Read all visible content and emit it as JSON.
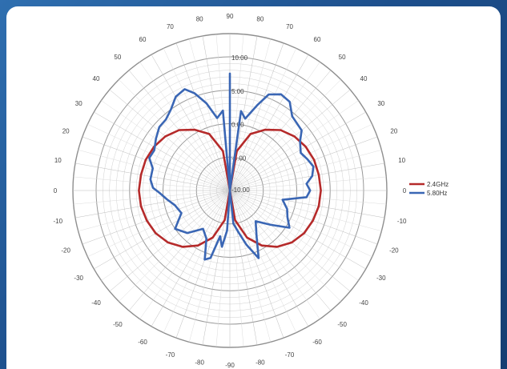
{
  "chart_data": {
    "type": "polar-line",
    "angle_labels": [
      "90",
      "80",
      "70",
      "60",
      "50",
      "40",
      "30",
      "20",
      "10",
      "0",
      "-10",
      "-20",
      "-30",
      "-40",
      "-50",
      "-60",
      "-70",
      "-80",
      "-90",
      "-80",
      "-70",
      "-60",
      "-50",
      "-40",
      "-30",
      "-20",
      "-10",
      "0",
      "10",
      "20",
      "30",
      "40",
      "50",
      "60",
      "70",
      "80"
    ],
    "ring_labels": [
      "10.00",
      "5.00",
      "0.00",
      "-5.00",
      "-10.00"
    ],
    "r_range": [
      -10,
      10
    ],
    "series": [
      {
        "name": "2.4GHz",
        "color": "#b52a2a",
        "points": [
          {
            "angle": 0,
            "value": -10
          },
          {
            "angle": 10,
            "value": -4
          },
          {
            "angle": 20,
            "value": -1
          },
          {
            "angle": 30,
            "value": 0.5
          },
          {
            "angle": 40,
            "value": 1.8
          },
          {
            "angle": 50,
            "value": 2.6
          },
          {
            "angle": 60,
            "value": 3.1
          },
          {
            "angle": 70,
            "value": 3.4
          },
          {
            "angle": 80,
            "value": 3.5
          },
          {
            "angle": 90,
            "value": 3.6
          },
          {
            "angle": 100,
            "value": 3.5
          },
          {
            "angle": 110,
            "value": 3.2
          },
          {
            "angle": 120,
            "value": 2.8
          },
          {
            "angle": 130,
            "value": 2.1
          },
          {
            "angle": 140,
            "value": 1.0
          },
          {
            "angle": 150,
            "value": -0.5
          },
          {
            "angle": 160,
            "value": -2.5
          },
          {
            "angle": 170,
            "value": -5.5
          },
          {
            "angle": 180,
            "value": -10
          },
          {
            "angle": 190,
            "value": -5.5
          },
          {
            "angle": 200,
            "value": -2.5
          },
          {
            "angle": 210,
            "value": -0.5
          },
          {
            "angle": 220,
            "value": 1.0
          },
          {
            "angle": 230,
            "value": 2.1
          },
          {
            "angle": 240,
            "value": 2.8
          },
          {
            "angle": 250,
            "value": 3.2
          },
          {
            "angle": 260,
            "value": 3.5
          },
          {
            "angle": 270,
            "value": 3.6
          },
          {
            "angle": 280,
            "value": 3.5
          },
          {
            "angle": 290,
            "value": 3.4
          },
          {
            "angle": 300,
            "value": 3.1
          },
          {
            "angle": 310,
            "value": 2.6
          },
          {
            "angle": 320,
            "value": 1.8
          },
          {
            "angle": 330,
            "value": 0.5
          },
          {
            "angle": 340,
            "value": -1
          },
          {
            "angle": 350,
            "value": -4
          },
          {
            "angle": 360,
            "value": -10
          }
        ]
      },
      {
        "name": "5.80Hz",
        "color": "#3a66b4",
        "points": [
          {
            "angle": 0,
            "value": 7.5
          },
          {
            "angle": 2,
            "value": -10
          },
          {
            "angle": 8,
            "value": 2.0
          },
          {
            "angle": 12,
            "value": 1.0
          },
          {
            "angle": 18,
            "value": 3.5
          },
          {
            "angle": 22,
            "value": 5.5
          },
          {
            "angle": 28,
            "value": 6.3
          },
          {
            "angle": 34,
            "value": 6.0
          },
          {
            "angle": 40,
            "value": 4.5
          },
          {
            "angle": 45,
            "value": 4.2
          },
          {
            "angle": 50,
            "value": 4.0
          },
          {
            "angle": 55,
            "value": 2.8
          },
          {
            "angle": 62,
            "value": 2.0
          },
          {
            "angle": 68,
            "value": 2.5
          },
          {
            "angle": 74,
            "value": 3.0
          },
          {
            "angle": 80,
            "value": 2.5
          },
          {
            "angle": 85,
            "value": 1.5
          },
          {
            "angle": 90,
            "value": 2.0
          },
          {
            "angle": 95,
            "value": 1.5
          },
          {
            "angle": 100,
            "value": -2.0
          },
          {
            "angle": 108,
            "value": -1.0
          },
          {
            "angle": 115,
            "value": -0.5
          },
          {
            "angle": 122,
            "value": 0.5
          },
          {
            "angle": 130,
            "value": -2.0
          },
          {
            "angle": 140,
            "value": -4.0
          },
          {
            "angle": 150,
            "value": -2.0
          },
          {
            "angle": 157,
            "value": 1.0
          },
          {
            "angle": 163,
            "value": -1.5
          },
          {
            "angle": 168,
            "value": -3.5
          },
          {
            "angle": 174,
            "value": -5.0
          },
          {
            "angle": 180,
            "value": -10
          },
          {
            "angle": 184,
            "value": -4.0
          },
          {
            "angle": 188,
            "value": -1.5
          },
          {
            "angle": 192,
            "value": -3.0
          },
          {
            "angle": 196,
            "value": 0.5
          },
          {
            "angle": 200,
            "value": 1.0
          },
          {
            "angle": 206,
            "value": -2.0
          },
          {
            "angle": 215,
            "value": -3.0
          },
          {
            "angle": 225,
            "value": -1.0
          },
          {
            "angle": 235,
            "value": 0.0
          },
          {
            "angle": 245,
            "value": -2.0
          },
          {
            "angle": 255,
            "value": -1.5
          },
          {
            "angle": 262,
            "value": -0.5
          },
          {
            "angle": 268,
            "value": 0.5
          },
          {
            "angle": 272,
            "value": 1.5
          },
          {
            "angle": 278,
            "value": 2.0
          },
          {
            "angle": 286,
            "value": 2.0
          },
          {
            "angle": 292,
            "value": 3.0
          },
          {
            "angle": 298,
            "value": 2.8
          },
          {
            "angle": 305,
            "value": 3.5
          },
          {
            "angle": 312,
            "value": 4.2
          },
          {
            "angle": 318,
            "value": 4.3
          },
          {
            "angle": 324,
            "value": 5.0
          },
          {
            "angle": 330,
            "value": 6.2
          },
          {
            "angle": 336,
            "value": 6.6
          },
          {
            "angle": 340,
            "value": 5.5
          },
          {
            "angle": 345,
            "value": 3.5
          },
          {
            "angle": 350,
            "value": 1.0
          },
          {
            "angle": 355,
            "value": 2.0
          },
          {
            "angle": 358,
            "value": -10
          },
          {
            "angle": 360,
            "value": 7.5
          }
        ]
      }
    ],
    "legend_position": "right"
  }
}
